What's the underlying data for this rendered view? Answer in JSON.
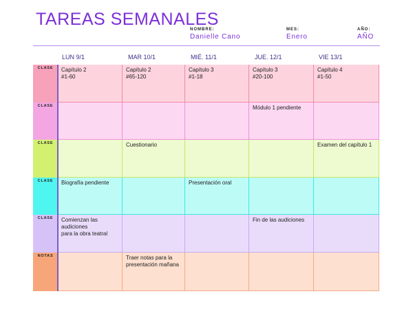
{
  "header": {
    "title": "TAREAS SEMANALES",
    "name_label": "NOMBRE:",
    "name_value": "Danielle Cano",
    "month_label": "MES:",
    "month_value": "Enero",
    "year_label": "AÑO:",
    "year_value": "AÑO"
  },
  "days": [
    "LUN 9/1",
    "MAR 10/1",
    "MIÉ. 11/1",
    "JUE. 12/1",
    "VIE 13/1"
  ],
  "rows": [
    {
      "label": "CLASE",
      "label_color": "#f7a1bb",
      "cell_color": "#fdd3de",
      "border_color": "#f089a8",
      "cells": [
        "Capítulo 2\n#1-60",
        "Capítulo 2\n#65-120",
        "Capítulo 3\n#1-18",
        "Capítulo 3\n#20-100",
        "Capítulo 4\n#1-50"
      ]
    },
    {
      "label": "CLASE",
      "label_color": "#f4a6e3",
      "cell_color": "#fdd8f3",
      "border_color": "#ee8fd9",
      "cells": [
        "",
        "",
        "",
        "Módulo 1 pendiente",
        ""
      ]
    },
    {
      "label": "CLASE",
      "label_color": "#d3f071",
      "cell_color": "#eefad0",
      "border_color": "#c7e66a",
      "cells": [
        "",
        "Cuestionario",
        "",
        "",
        "Examen del capítulo 1"
      ]
    },
    {
      "label": "CLASE",
      "label_color": "#4ff5ef",
      "cell_color": "#bdfbf7",
      "border_color": "#3ee6e0",
      "cells": [
        "Biografía pendiente",
        "",
        "Presentación oral",
        "",
        ""
      ]
    },
    {
      "label": "CLASE",
      "label_color": "#d7c2f7",
      "cell_color": "#e9dcfb",
      "border_color": "#c8a9f3",
      "cells": [
        "Comienzan las audiciones\npara la obra teatral",
        "",
        "",
        "Fin de las audiciones",
        ""
      ]
    },
    {
      "label": "NOTAS",
      "label_color": "#f7a679",
      "cell_color": "#fde0cf",
      "border_color": "#f3a98a",
      "cells": [
        "",
        "Traer notas para la\npresentación mañana",
        "",
        "",
        ""
      ]
    }
  ]
}
